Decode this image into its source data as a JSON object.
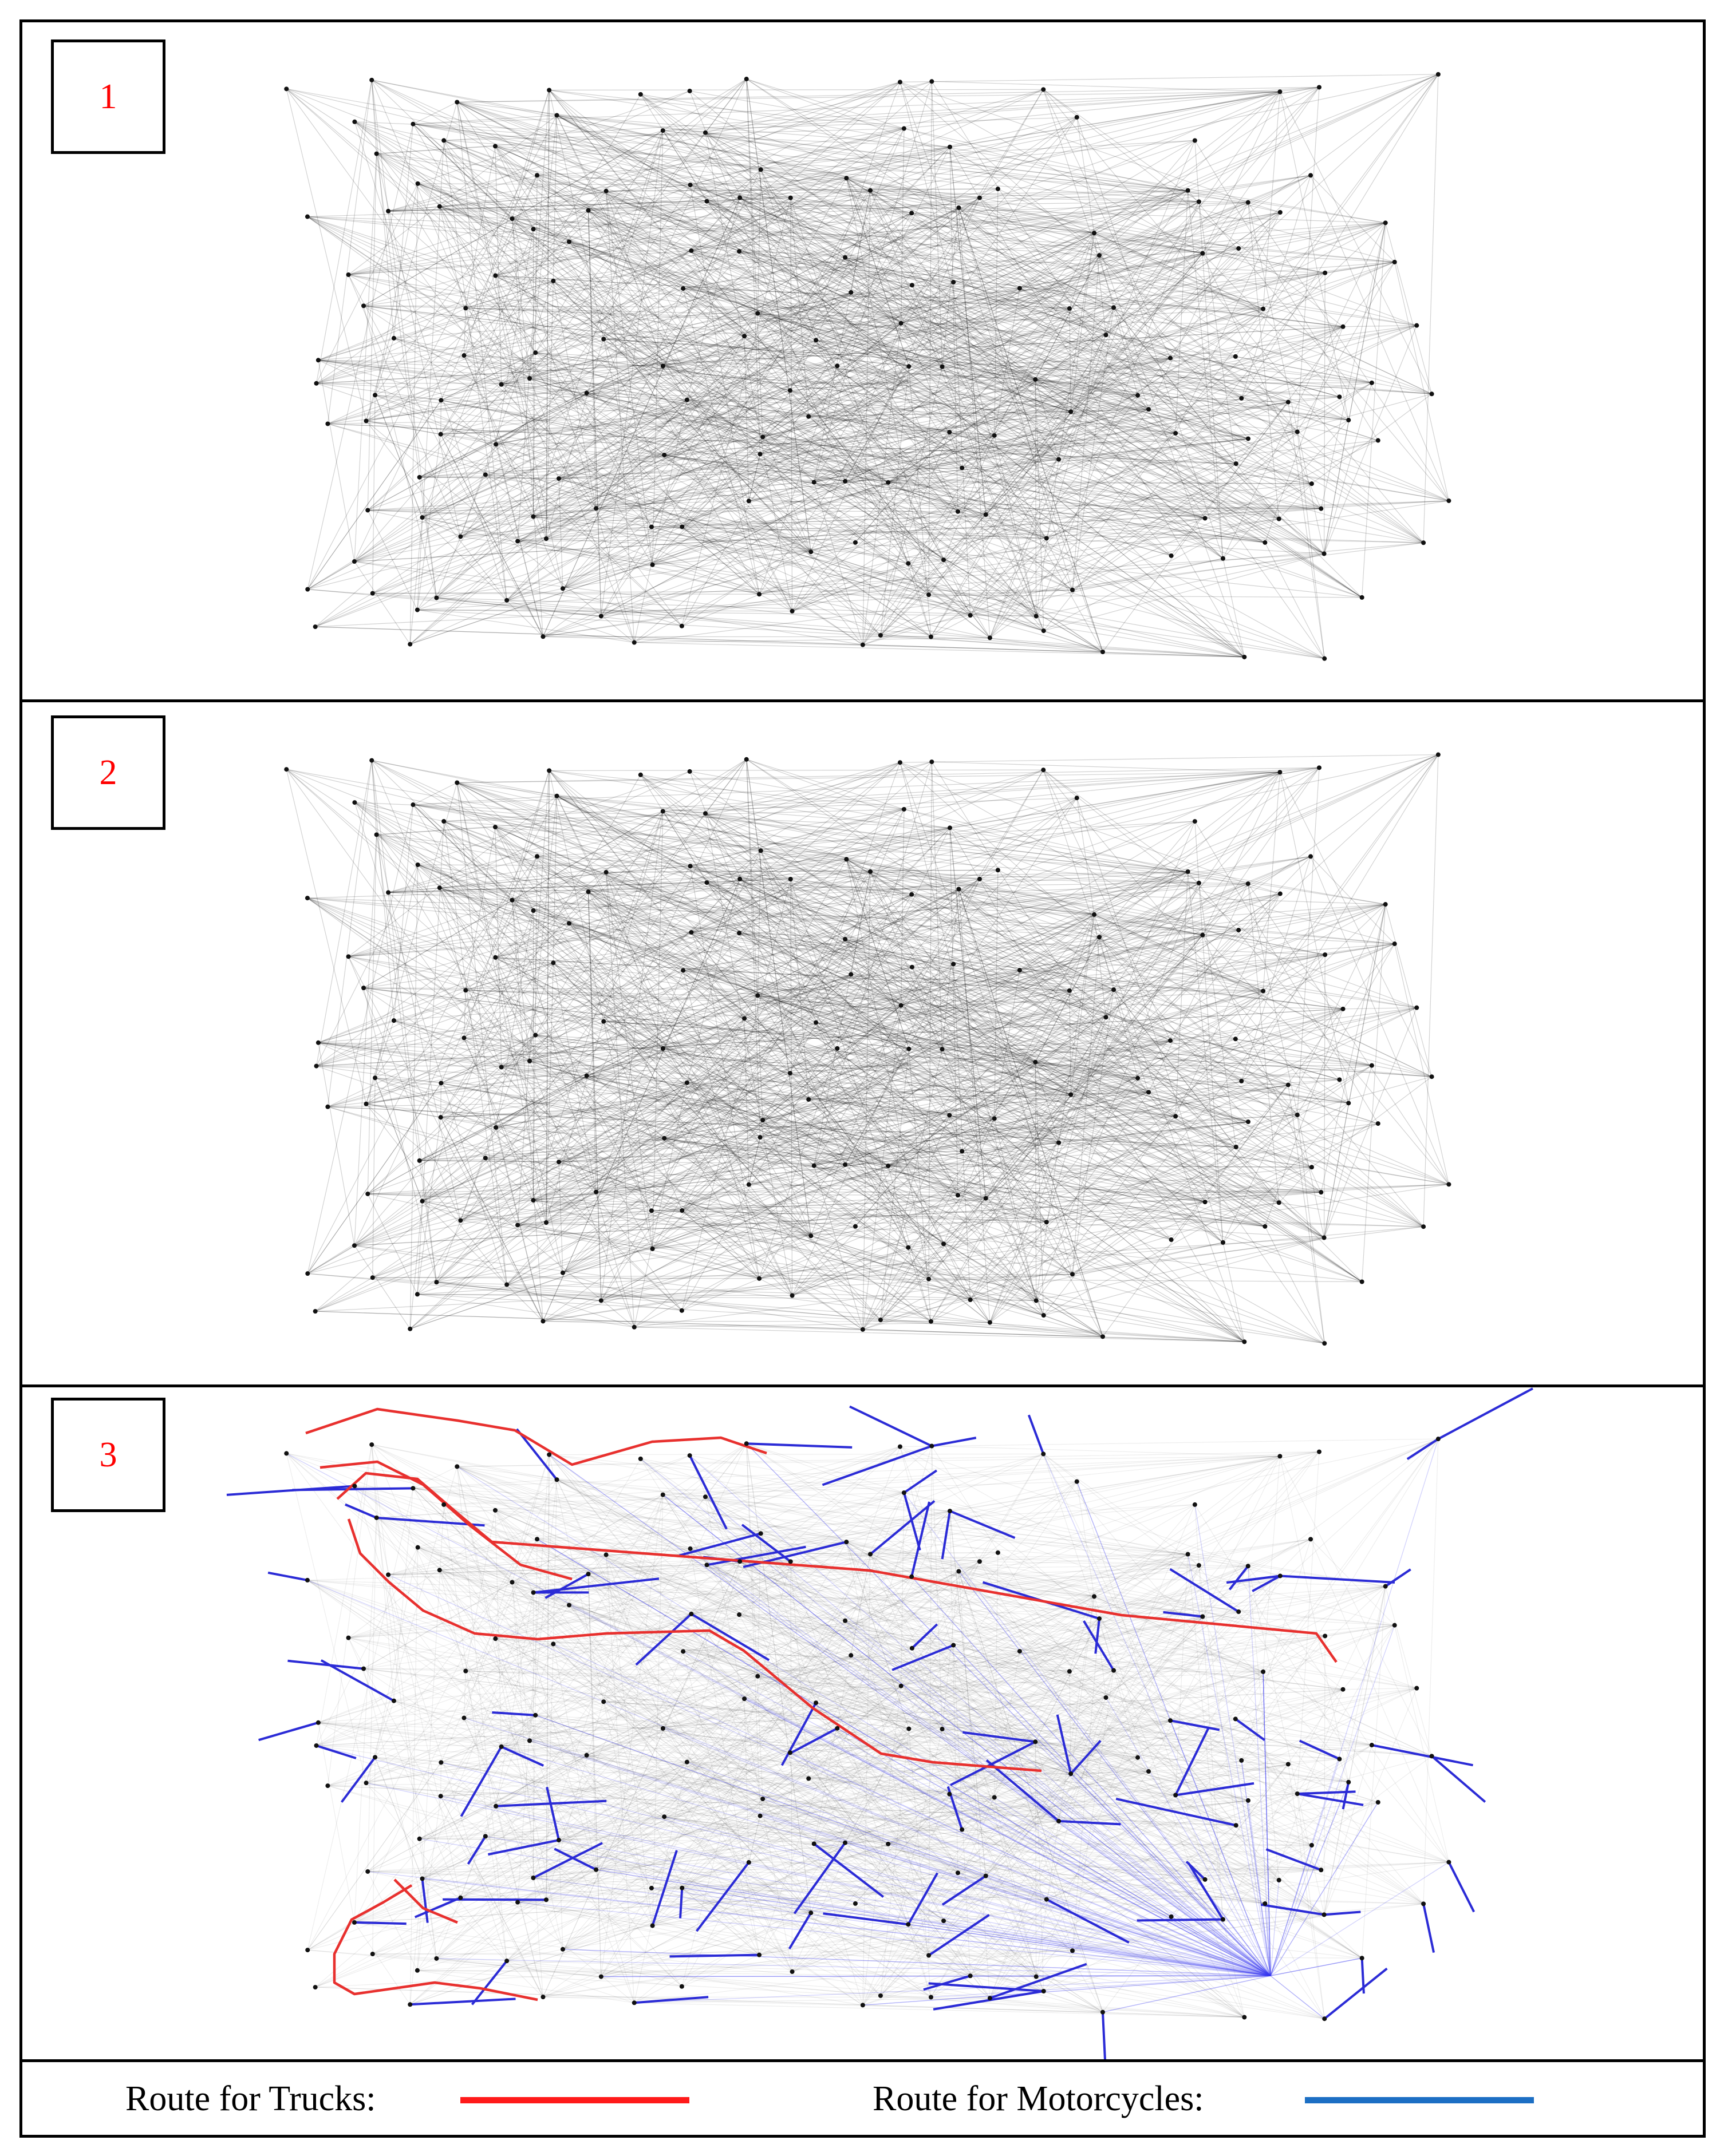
{
  "panels": [
    {
      "id": "1",
      "label": "1",
      "show_routes": false
    },
    {
      "id": "2",
      "label": "2",
      "show_routes": false
    },
    {
      "id": "3",
      "label": "3",
      "show_routes": true
    }
  ],
  "legend": {
    "trucks_label": "Route for Trucks:",
    "trucks_color": "#ff1a1a",
    "motorcycles_label": "Route for Motorcycles:",
    "motorcycles_color": "#1c6fc4"
  },
  "colors": {
    "edge": "#000000",
    "node": "#111111",
    "truck_route": "#e8302e",
    "motorcycle_route": "#2b2bd6",
    "hub_spokes": "#3b3bf0"
  }
}
